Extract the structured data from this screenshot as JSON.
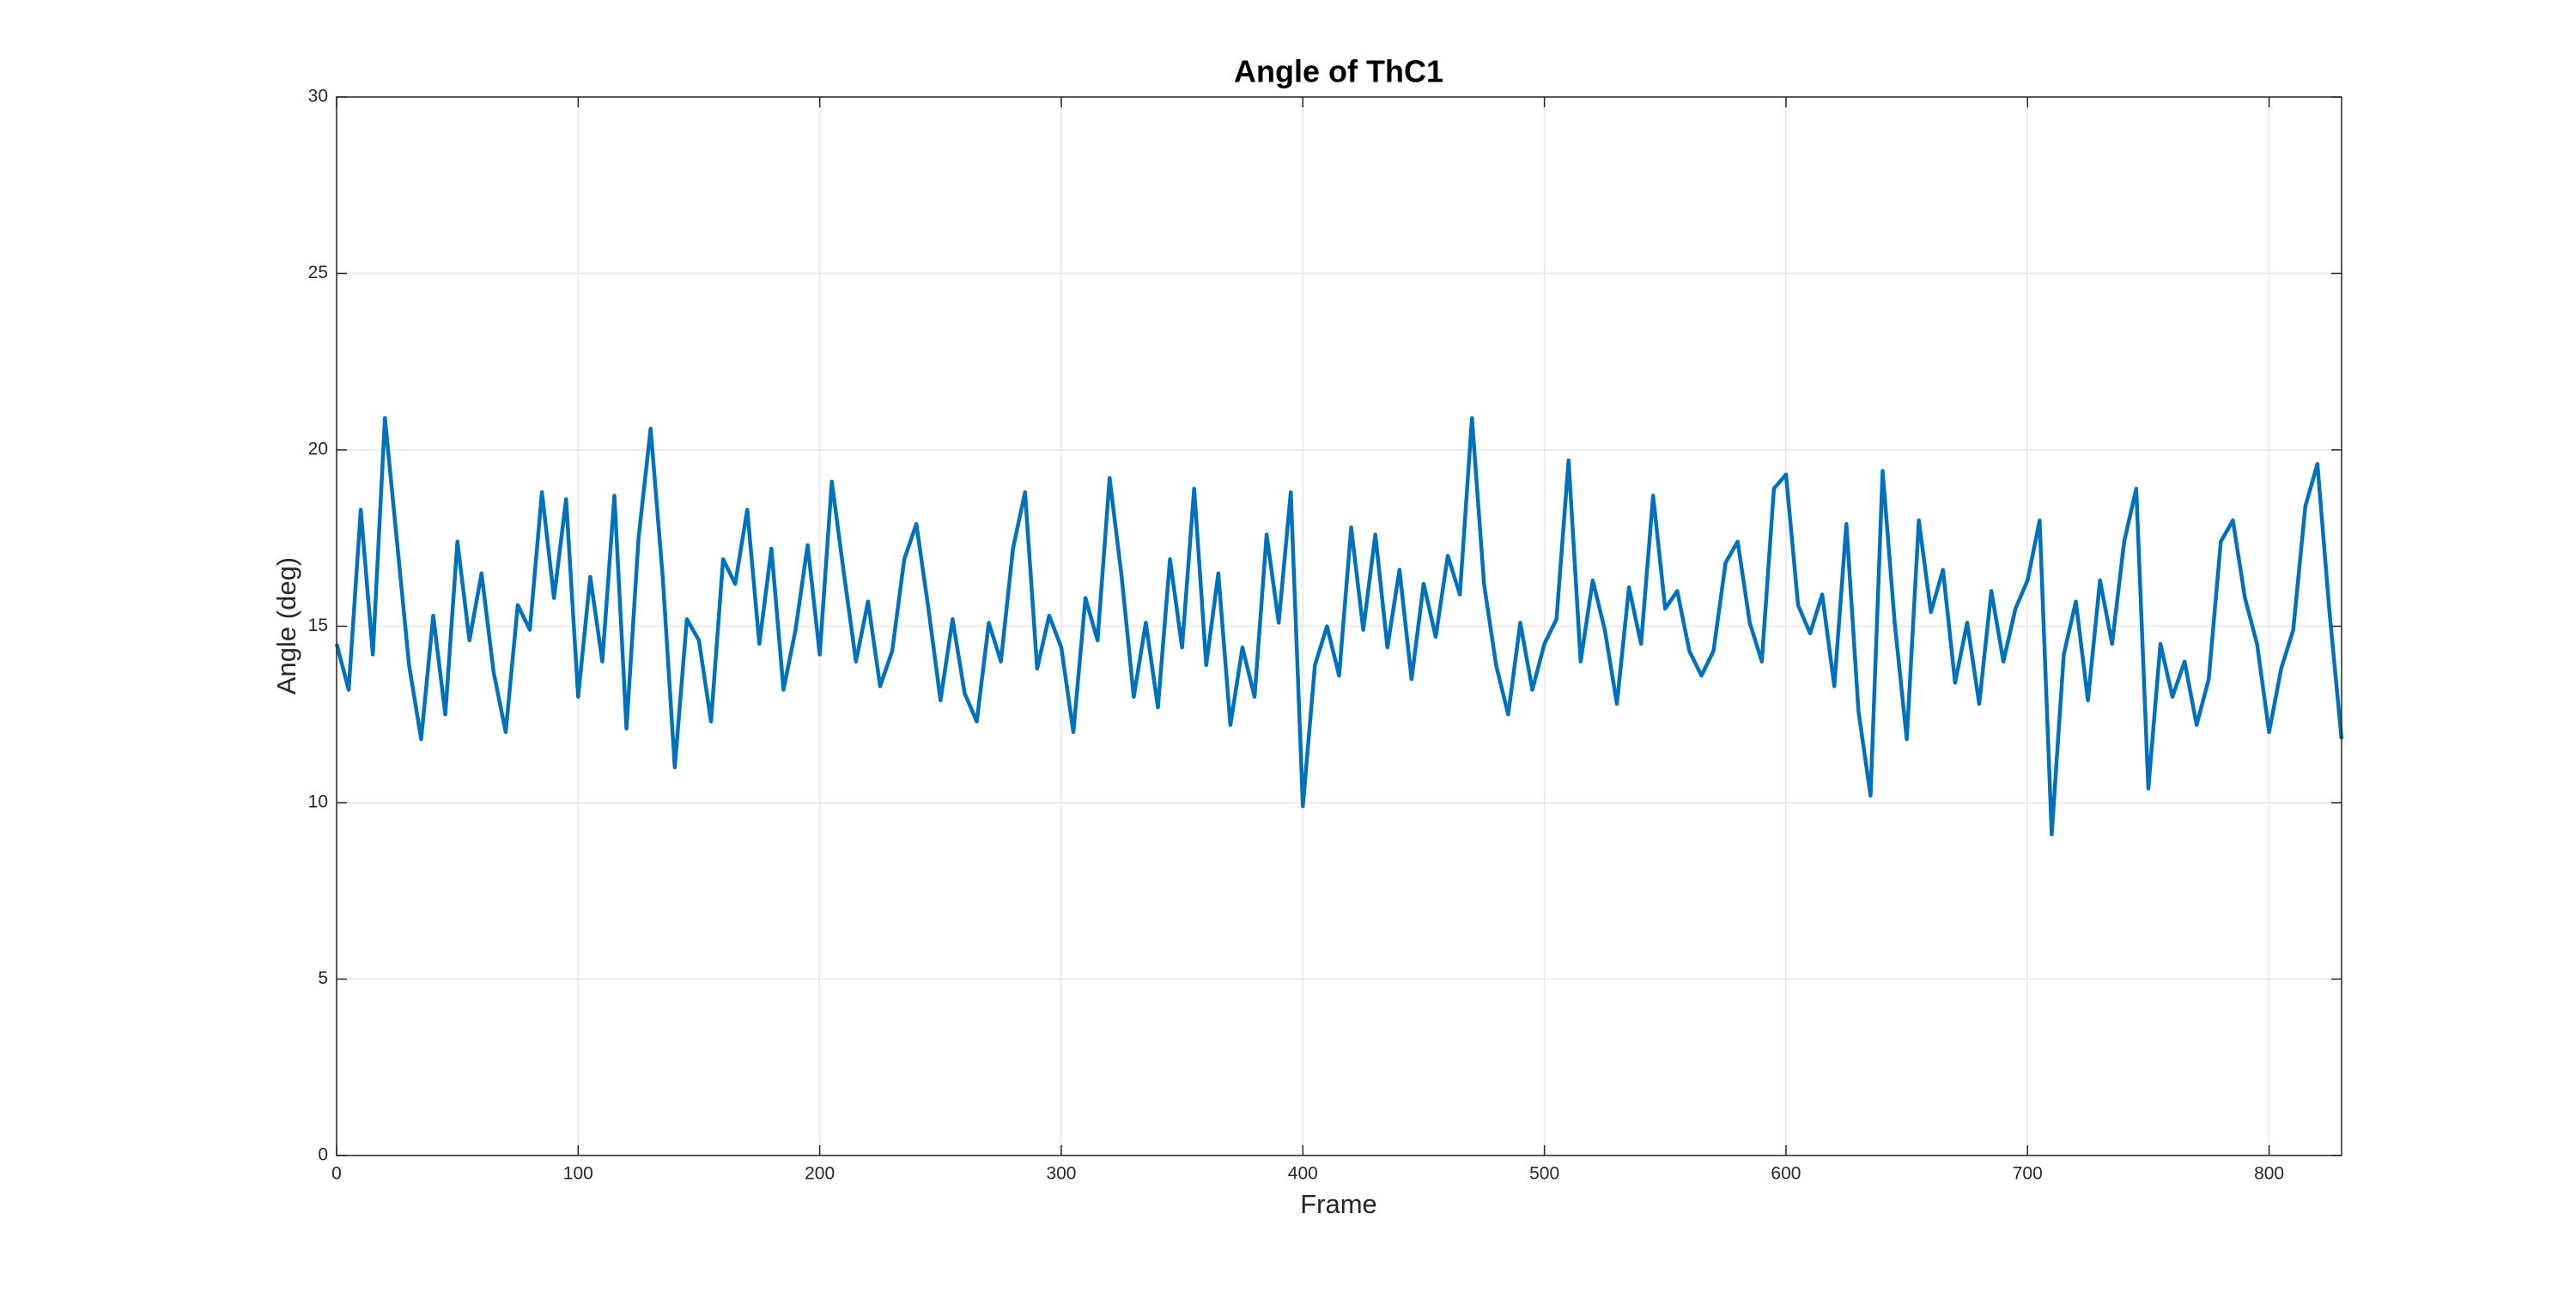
{
  "chart_data": {
    "type": "line",
    "title": "Angle of ThC1",
    "x_label": "Frame",
    "y_label": "Angle (deg)",
    "x": [
      0,
      5,
      10,
      15,
      20,
      25,
      30,
      35,
      40,
      45,
      50,
      55,
      60,
      65,
      70,
      75,
      80,
      85,
      90,
      95,
      100,
      105,
      110,
      115,
      120,
      125,
      130,
      135,
      140,
      145,
      150,
      155,
      160,
      165,
      170,
      175,
      180,
      185,
      190,
      195,
      200,
      205,
      210,
      215,
      220,
      225,
      230,
      235,
      240,
      245,
      250,
      255,
      260,
      265,
      270,
      275,
      280,
      285,
      290,
      295,
      300,
      305,
      310,
      315,
      320,
      325,
      330,
      335,
      340,
      345,
      350,
      355,
      360,
      365,
      370,
      375,
      380,
      385,
      390,
      395,
      400,
      405,
      410,
      415,
      420,
      425,
      430,
      435,
      440,
      445,
      450,
      455,
      460,
      465,
      470,
      475,
      480,
      485,
      490,
      495,
      500,
      505,
      510,
      515,
      520,
      525,
      530,
      535,
      540,
      545,
      550,
      555,
      560,
      565,
      570,
      575,
      580,
      585,
      590,
      595,
      600,
      605,
      610,
      615,
      620,
      625,
      630,
      635,
      640,
      645,
      650,
      655,
      660,
      665,
      670,
      675,
      680,
      685,
      690,
      695,
      700,
      705,
      710,
      715,
      720,
      725,
      730,
      735,
      740,
      745,
      750,
      755,
      760,
      765,
      770,
      775,
      780,
      785,
      790,
      795,
      800,
      805,
      810,
      815,
      820,
      825,
      830
    ],
    "series": [
      {
        "name": "Angle",
        "color": "#0072BD",
        "values": [
          14.5,
          13.2,
          18.3,
          14.2,
          20.9,
          17.4,
          13.9,
          11.8,
          15.3,
          12.5,
          17.4,
          14.6,
          16.5,
          13.7,
          12.0,
          15.6,
          14.9,
          18.8,
          15.8,
          18.6,
          13.0,
          16.4,
          14.0,
          18.7,
          12.1,
          17.5,
          20.6,
          16.4,
          11.0,
          15.2,
          14.6,
          12.3,
          16.9,
          16.2,
          18.3,
          14.5,
          17.2,
          13.2,
          14.9,
          17.3,
          14.2,
          19.1,
          16.5,
          14.0,
          15.7,
          13.3,
          14.3,
          16.9,
          17.9,
          15.5,
          12.9,
          15.2,
          13.1,
          12.3,
          15.1,
          14.0,
          17.2,
          18.8,
          13.8,
          15.3,
          14.4,
          12.0,
          15.8,
          14.6,
          19.2,
          16.4,
          13.0,
          15.1,
          12.7,
          16.9,
          14.4,
          18.9,
          13.9,
          16.5,
          12.2,
          14.4,
          13.0,
          17.6,
          15.1,
          18.8,
          9.9,
          13.9,
          15.0,
          13.6,
          17.8,
          14.9,
          17.6,
          14.4,
          16.6,
          13.5,
          16.2,
          14.7,
          17.0,
          15.9,
          20.9,
          16.2,
          13.9,
          12.5,
          15.1,
          13.2,
          14.5,
          15.2,
          19.7,
          14.0,
          16.3,
          14.9,
          12.8,
          16.1,
          14.5,
          18.7,
          15.5,
          16.0,
          14.3,
          13.6,
          14.3,
          16.8,
          17.4,
          15.1,
          14.0,
          18.9,
          19.3,
          15.6,
          14.8,
          15.9,
          13.3,
          17.9,
          12.6,
          10.2,
          19.4,
          15.1,
          11.8,
          18.0,
          15.4,
          16.6,
          13.4,
          15.1,
          12.8,
          16.0,
          14.0,
          15.5,
          16.3,
          18.0,
          9.1,
          14.2,
          15.7,
          12.9,
          16.3,
          14.5,
          17.4,
          18.9,
          10.4,
          14.5,
          13.0,
          14.0,
          12.2,
          13.5,
          17.4,
          18.0,
          15.8,
          14.5,
          12.0,
          13.8,
          14.9,
          18.4,
          19.6,
          15.4,
          11.8
        ]
      }
    ],
    "xlim": [
      0,
      830
    ],
    "xticks": [
      0,
      100,
      200,
      300,
      400,
      500,
      600,
      700,
      800
    ],
    "ylim": [
      0,
      30
    ],
    "yticks": [
      0,
      5,
      10,
      15,
      20,
      25,
      30
    ],
    "grid": true
  }
}
